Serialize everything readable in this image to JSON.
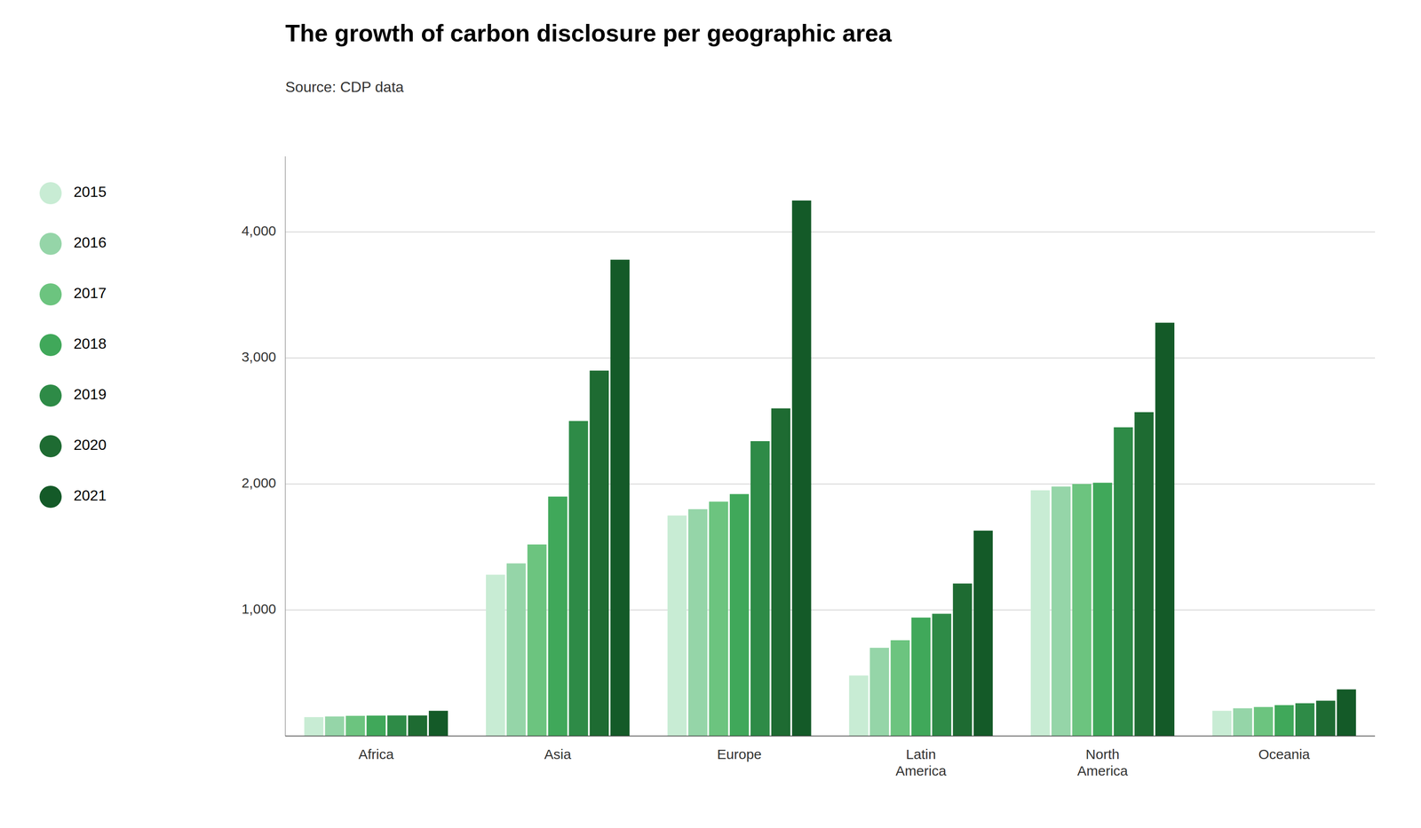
{
  "chart_data": {
    "type": "bar",
    "title": "The growth of carbon disclosure per geographic area",
    "subtitle": "Source: CDP data",
    "categories": [
      "Africa",
      "Asia",
      "Europe",
      "Latin\nAmerica",
      "North\nAmerica",
      "Oceania"
    ],
    "series": [
      {
        "name": "2015",
        "color": "#c8ecd4",
        "values": [
          150,
          1280,
          1750,
          480,
          1950,
          200
        ]
      },
      {
        "name": "2016",
        "color": "#95d5a8",
        "values": [
          155,
          1370,
          1800,
          700,
          1980,
          220
        ]
      },
      {
        "name": "2017",
        "color": "#6cc47f",
        "values": [
          160,
          1520,
          1860,
          760,
          2000,
          230
        ]
      },
      {
        "name": "2018",
        "color": "#40a85a",
        "values": [
          162,
          1900,
          1920,
          940,
          2010,
          245
        ]
      },
      {
        "name": "2019",
        "color": "#2e8b47",
        "values": [
          163,
          2500,
          2340,
          970,
          2450,
          260
        ]
      },
      {
        "name": "2020",
        "color": "#1e6b32",
        "values": [
          163,
          2900,
          2600,
          1210,
          2570,
          280
        ]
      },
      {
        "name": "2021",
        "color": "#145a28",
        "values": [
          200,
          3780,
          4250,
          1630,
          3280,
          370
        ]
      }
    ],
    "ylim": [
      0,
      4600
    ],
    "yticks": [
      {
        "value": 1000,
        "label": "1,000"
      },
      {
        "value": 2000,
        "label": "2,000"
      },
      {
        "value": 3000,
        "label": "3,000"
      },
      {
        "value": 4000,
        "label": "4,000"
      }
    ],
    "grid": true,
    "legend": "left"
  }
}
